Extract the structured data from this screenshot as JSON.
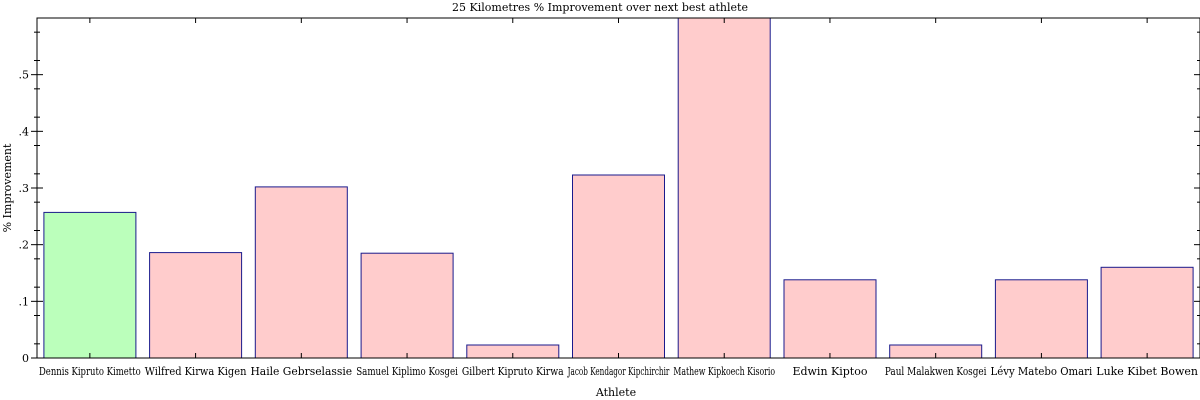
{
  "chart_data": {
    "type": "bar",
    "title": "25 Kilometres % Improvement over next best athlete",
    "xlabel": "Athlete",
    "ylabel": "% Improvement",
    "ylim": [
      0,
      0.6
    ],
    "yticks": [
      0,
      0.1,
      0.2,
      0.3,
      0.4,
      0.5
    ],
    "ytick_labels": [
      "0",
      ".1",
      ".2",
      ".3",
      ".4",
      ".5"
    ],
    "grid": false,
    "categories": [
      "Dennis Kipruto Kimetto",
      "Wilfred Kirwa Kigen",
      "Haile Gebrselassie",
      "Samuel Kiplimo Kosgei",
      "Gilbert Kipruto Kirwa",
      "Jacob Kendagor Kipchirchir",
      "Mathew Kipkoech Kisorio",
      "Edwin Kiptoo",
      "Paul Malakwen Kosgei",
      "Lévy Matebo Omari",
      "Luke Kibet Bowen"
    ],
    "values": [
      0.257,
      0.186,
      0.302,
      0.185,
      0.023,
      0.323,
      0.6,
      0.138,
      0.023,
      0.138,
      0.16
    ],
    "colors": {
      "highlight": "#bbffbb",
      "default": "#ffcccc",
      "edge": "#1a1a8c"
    },
    "highlight_index": 0
  }
}
